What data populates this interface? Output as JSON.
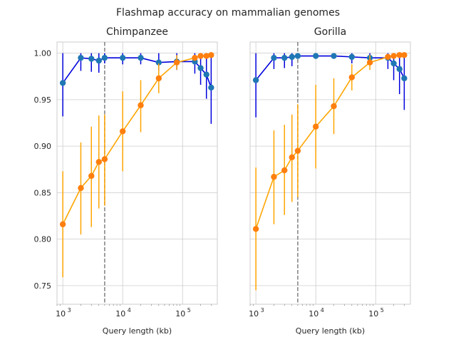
{
  "figure": {
    "suptitle": "Flashmap accuracy on mammalian genomes"
  },
  "colors": {
    "blue_line": "#0000dd",
    "blue_marker": "#1f77b4",
    "orange_line": "#ffa500",
    "orange_marker": "#ff7f0e",
    "vline": "#808080",
    "grid": "#cccccc",
    "frame": "#cccccc"
  },
  "chart_data": [
    {
      "type": "line",
      "title": "Chimpanzee",
      "xlabel": "Query length (kb)",
      "ylabel": "",
      "xscale": "log",
      "xlim": [
        800,
        380000
      ],
      "ylim": [
        0.73,
        1.012
      ],
      "yticks": [
        0.75,
        0.8,
        0.85,
        0.9,
        0.95,
        1.0
      ],
      "ytick_labels": [
        "0.75",
        "0.80",
        "0.85",
        "0.90",
        "0.95",
        "1.00"
      ],
      "xticks": [
        1000,
        10000,
        100000
      ],
      "xtick_labels": [
        {
          "base": "10",
          "exp": "3"
        },
        {
          "base": "10",
          "exp": "4"
        },
        {
          "base": "10",
          "exp": "5"
        }
      ],
      "grid": true,
      "vline_x": 5000,
      "series": [
        {
          "color": "blue",
          "x": [
            1000,
            2000,
            3000,
            4000,
            5000,
            10000,
            20000,
            40000,
            80000,
            160000,
            200000,
            250000,
            300000
          ],
          "y": [
            0.968,
            0.995,
            0.994,
            0.992,
            0.995,
            0.995,
            0.995,
            0.99,
            0.991,
            0.991,
            0.984,
            0.977,
            0.963
          ],
          "err_low": [
            0.036,
            0.014,
            0.014,
            0.013,
            0.006,
            0.007,
            0.007,
            0.009,
            0.009,
            0.013,
            0.018,
            0.026,
            0.039
          ],
          "err_high": [
            0.032,
            0.005,
            0.006,
            0.008,
            0.005,
            0.005,
            0.005,
            0.01,
            0.009,
            0.009,
            0.016,
            0.023,
            0.034
          ]
        },
        {
          "color": "orange",
          "x": [
            1000,
            2000,
            3000,
            4000,
            5000,
            10000,
            20000,
            40000,
            80000,
            160000,
            200000,
            250000,
            300000
          ],
          "y": [
            0.816,
            0.855,
            0.868,
            0.883,
            0.886,
            0.916,
            0.944,
            0.973,
            0.99,
            0.995,
            0.997,
            0.997,
            0.998
          ],
          "err_low": [
            0.057,
            0.05,
            0.055,
            0.05,
            0.05,
            0.043,
            0.029,
            0.016,
            0.008,
            0.0,
            0.0,
            0.0,
            0.0
          ],
          "err_high": [
            0.057,
            0.049,
            0.053,
            0.05,
            0.048,
            0.043,
            0.027,
            0.016,
            0.008,
            0.0,
            0.0,
            0.0,
            0.0
          ]
        }
      ]
    },
    {
      "type": "line",
      "title": "Gorilla",
      "xlabel": "Query length (kb)",
      "ylabel": "",
      "xscale": "log",
      "xlim": [
        800,
        380000
      ],
      "ylim": [
        0.73,
        1.012
      ],
      "yticks": [
        0.75,
        0.8,
        0.85,
        0.9,
        0.95,
        1.0
      ],
      "ytick_labels": [],
      "xticks": [
        1000,
        10000,
        100000
      ],
      "xtick_labels": [
        {
          "base": "10",
          "exp": "3"
        },
        {
          "base": "10",
          "exp": "4"
        },
        {
          "base": "10",
          "exp": "5"
        }
      ],
      "grid": true,
      "vline_x": 5000,
      "series": [
        {
          "color": "blue",
          "x": [
            1000,
            2000,
            3000,
            4000,
            5000,
            10000,
            20000,
            40000,
            80000,
            160000,
            200000,
            250000,
            300000
          ],
          "y": [
            0.971,
            0.995,
            0.995,
            0.996,
            0.997,
            0.997,
            0.997,
            0.996,
            0.995,
            0.995,
            0.989,
            0.983,
            0.973
          ],
          "err_low": [
            0.04,
            0.012,
            0.011,
            0.01,
            0.002,
            0.002,
            0.003,
            0.007,
            0.008,
            0.012,
            0.018,
            0.027,
            0.034
          ],
          "err_high": [
            0.029,
            0.005,
            0.005,
            0.004,
            0.002,
            0.002,
            0.003,
            0.004,
            0.005,
            0.005,
            0.01,
            0.015,
            0.024
          ]
        },
        {
          "color": "orange",
          "x": [
            1000,
            2000,
            3000,
            4000,
            5000,
            10000,
            20000,
            40000,
            80000,
            160000,
            200000,
            250000,
            300000
          ],
          "y": [
            0.811,
            0.867,
            0.874,
            0.888,
            0.895,
            0.921,
            0.943,
            0.974,
            0.99,
            0.996,
            0.997,
            0.998,
            0.998
          ],
          "err_low": [
            0.066,
            0.051,
            0.048,
            0.048,
            0.05,
            0.045,
            0.03,
            0.014,
            0.008,
            0.0,
            0.0,
            0.0,
            0.0
          ],
          "err_high": [
            0.066,
            0.05,
            0.049,
            0.046,
            0.05,
            0.045,
            0.03,
            0.014,
            0.008,
            0.0,
            0.0,
            0.0,
            0.0
          ]
        }
      ]
    }
  ]
}
